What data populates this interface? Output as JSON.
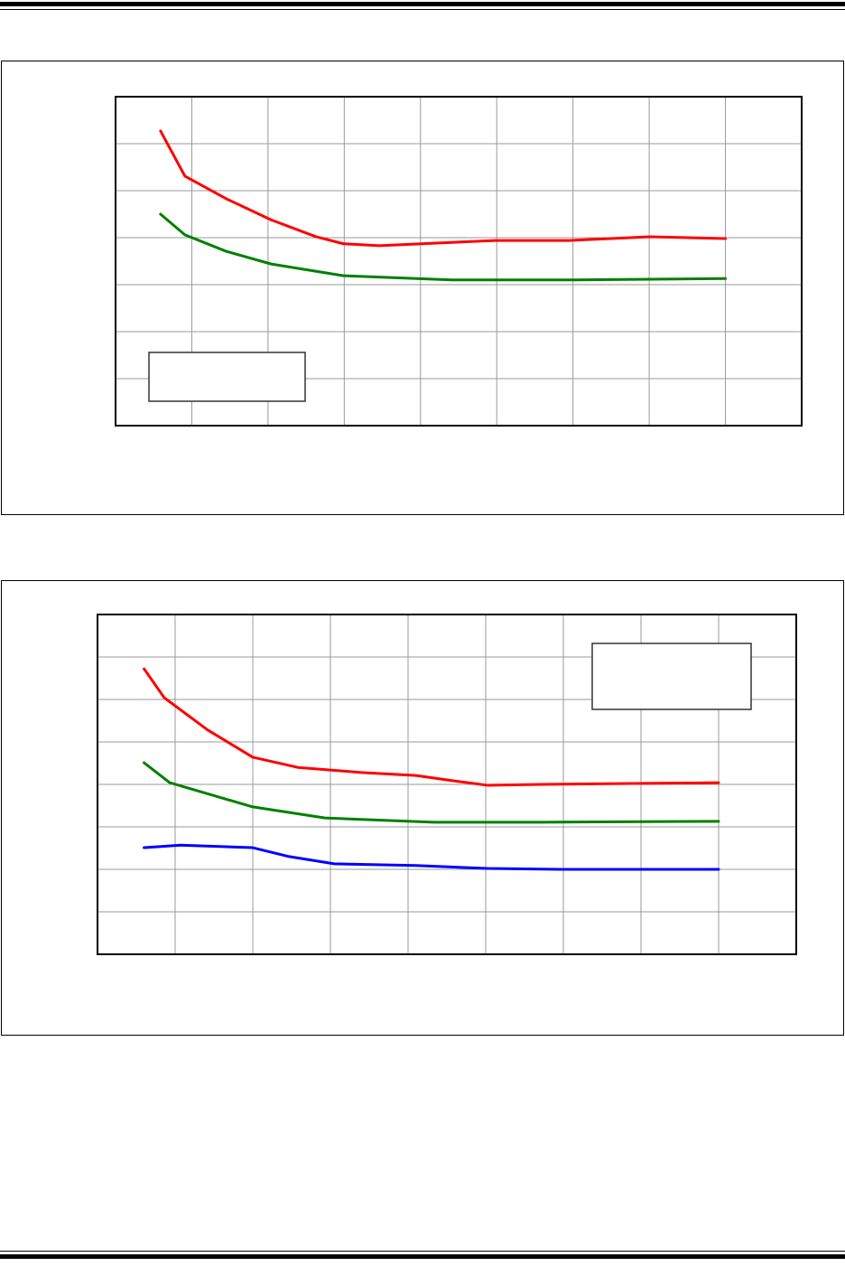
{
  "chart_data": [
    {
      "type": "line",
      "grid": true,
      "xlim": [
        0,
        9
      ],
      "ylim": [
        0,
        7
      ],
      "legend": "bottom-left",
      "legend_entries": [],
      "series": [
        {
          "color": "#ff0000",
          "x": [
            0.59,
            0.91,
            1.45,
            2.04,
            2.63,
            2.99,
            3.46,
            4.41,
            4.98,
            5.95,
            7.01,
            8.0
          ],
          "y": [
            6.27,
            5.31,
            4.83,
            4.38,
            4.02,
            3.87,
            3.83,
            3.9,
            3.94,
            3.94,
            4.02,
            3.98
          ]
        },
        {
          "color": "#008000",
          "x": [
            0.59,
            0.91,
            1.45,
            2.04,
            2.99,
            4.41,
            5.95,
            8.0
          ],
          "y": [
            4.5,
            4.06,
            3.71,
            3.44,
            3.19,
            3.1,
            3.1,
            3.13
          ]
        }
      ]
    },
    {
      "type": "line",
      "grid": true,
      "xlim": [
        0,
        9
      ],
      "ylim": [
        0,
        8
      ],
      "legend": "top-right",
      "legend_entries": [],
      "series": [
        {
          "color": "#ff0000",
          "x": [
            0.6,
            0.86,
            1.42,
            2.0,
            2.58,
            3.4,
            4.1,
            4.56,
            5.02,
            5.72,
            8.0
          ],
          "y": [
            6.72,
            6.04,
            5.28,
            4.64,
            4.4,
            4.28,
            4.21,
            4.09,
            3.98,
            4.0,
            4.04
          ]
        },
        {
          "color": "#008000",
          "x": [
            0.6,
            0.93,
            2.0,
            2.93,
            4.33,
            5.72,
            8.0
          ],
          "y": [
            4.51,
            4.04,
            3.47,
            3.21,
            3.11,
            3.11,
            3.13
          ]
        },
        {
          "color": "#0000ff",
          "x": [
            0.6,
            1.07,
            2.0,
            2.47,
            3.05,
            4.1,
            5.02,
            5.95,
            8.0
          ],
          "y": [
            2.51,
            2.57,
            2.51,
            2.3,
            2.13,
            2.09,
            2.02,
            2.0,
            2.0
          ]
        }
      ]
    }
  ]
}
